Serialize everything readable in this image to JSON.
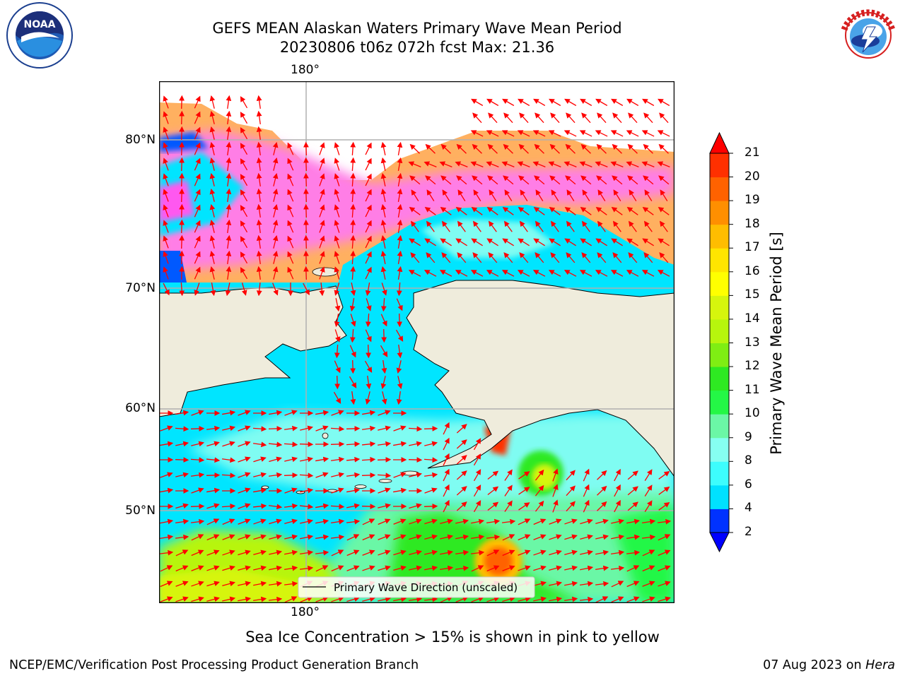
{
  "title_line1": "GEFS MEAN Alaskan Waters Primary Wave Mean Period",
  "title_line2": "20230806 t06z 072h fcst   Max: 21.36",
  "logos": {
    "left": {
      "icon": "noaa-logo",
      "text": "NOAA",
      "ring_text": "NATIONAL OCEANIC AND ATMOSPHERIC ADMINISTRATION · U.S. DEPARTMENT OF COMMERCE"
    },
    "right": {
      "icon": "nws-logo",
      "ring_text": "NATIONAL WEATHER SERVICE"
    }
  },
  "map": {
    "lon_label_top": "180°",
    "lon_label_bottom": "180°",
    "lat_labels": [
      "80°N",
      "70°N",
      "60°N",
      "50°N"
    ],
    "legend_label": "Primary Wave Direction (unscaled)",
    "colors": {
      "land": "#efecdc",
      "ocean_low": "#00e5ff",
      "ocean_mid": "#7ffcf2",
      "ice_pink": "#ff59f0",
      "ice_orange": "#ffb060"
    }
  },
  "colorbar": {
    "label": "Primary Wave Mean Period [s]",
    "ticks": [
      "2",
      "4",
      "6",
      "8",
      "9",
      "10",
      "11",
      "12",
      "13",
      "14",
      "15",
      "16",
      "17",
      "18",
      "19",
      "20",
      "21"
    ],
    "colors": [
      "#0032ff",
      "#00e1ff",
      "#3dfdfd",
      "#86fff1",
      "#6bf7a6",
      "#24f746",
      "#2ee922",
      "#7fee13",
      "#b7f50d",
      "#d6f50d",
      "#ffff00",
      "#ffe500",
      "#ffbd00",
      "#ff8f00",
      "#ff6200",
      "#ff3000"
    ],
    "under_color": "#0000ff",
    "over_color": "#ff0000"
  },
  "caption": "Sea Ice Concentration > 15% is shown in pink to yellow",
  "footer_left": "NCEP/EMC/Verification Post Processing Product Generation Branch",
  "footer_right_date": "07 Aug 2023 on",
  "footer_right_machine": "Hera"
}
